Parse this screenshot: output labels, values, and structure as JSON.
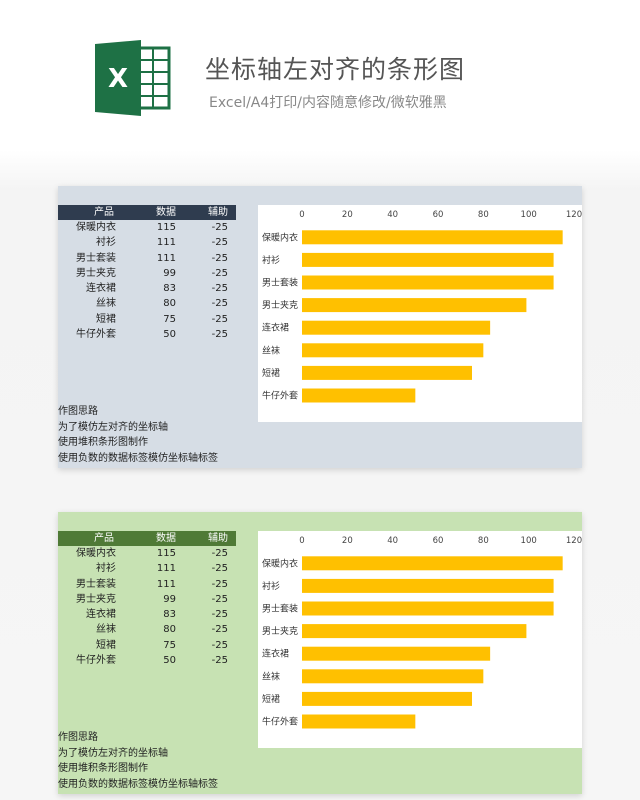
{
  "header": {
    "title": "坐标轴左对齐的条形图",
    "subtitle": "Excel/A4打印/内容随意修改/微软雅黑",
    "logo_letter": "X",
    "logo_icon": "excel-icon"
  },
  "colors": {
    "bar": "#ffc000",
    "panel1_bg": "#d6dde5",
    "panel1_header": "#2f3c4f",
    "panel2_bg": "#c7e2b3",
    "panel2_header": "#4f7a36",
    "excel_green": "#1e7145"
  },
  "table": {
    "headers": [
      "产品",
      "数据",
      "辅助"
    ],
    "rows": [
      [
        "保暖内衣",
        "115",
        "-25"
      ],
      [
        "衬衫",
        "111",
        "-25"
      ],
      [
        "男士套装",
        "111",
        "-25"
      ],
      [
        "男士夹克",
        "99",
        "-25"
      ],
      [
        "连衣裙",
        "83",
        "-25"
      ],
      [
        "丝袜",
        "80",
        "-25"
      ],
      [
        "短裙",
        "75",
        "-25"
      ],
      [
        "牛仔外套",
        "50",
        "-25"
      ]
    ]
  },
  "notes": [
    "作图思路",
    "为了模仿左对齐的坐标轴",
    "使用堆积条形图制作",
    "使用负数的数据标签模仿坐标轴标签"
  ],
  "chart_data": [
    {
      "type": "bar",
      "orientation": "horizontal",
      "categories": [
        "保暖内衣",
        "衬衫",
        "男士套装",
        "男士夹克",
        "连衣裙",
        "丝袜",
        "短裙",
        "牛仔外套"
      ],
      "values": [
        115,
        111,
        111,
        99,
        83,
        80,
        75,
        50
      ],
      "xlim": [
        0,
        120
      ],
      "xticks": [
        "0",
        "20",
        "40",
        "60",
        "80",
        "100",
        "120"
      ],
      "axis_position": "top",
      "grid": false,
      "legend": "none"
    },
    {
      "type": "bar",
      "orientation": "horizontal",
      "categories": [
        "保暖内衣",
        "衬衫",
        "男士套装",
        "男士夹克",
        "连衣裙",
        "丝袜",
        "短裙",
        "牛仔外套"
      ],
      "values": [
        115,
        111,
        111,
        99,
        83,
        80,
        75,
        50
      ],
      "xlim": [
        0,
        120
      ],
      "xticks": [
        "0",
        "20",
        "40",
        "60",
        "80",
        "100",
        "120"
      ],
      "axis_position": "top",
      "grid": false,
      "legend": "none"
    }
  ]
}
